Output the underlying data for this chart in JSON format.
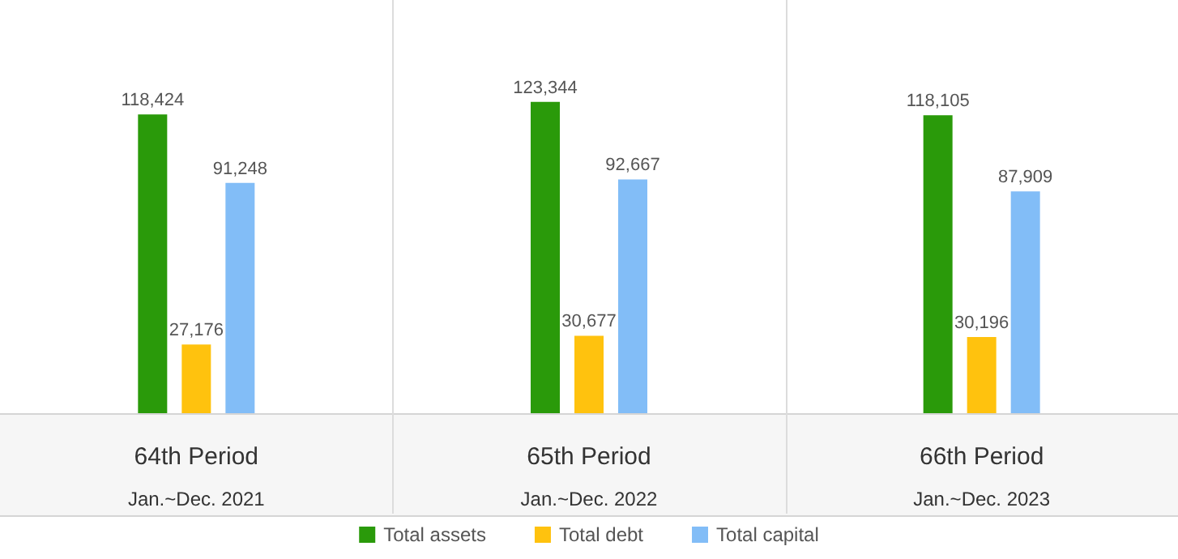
{
  "chart_data": {
    "type": "bar",
    "categories": [
      "64th Period\nJan.~Dec. 2021",
      "65th Period\nJan.~Dec. 2022",
      "66th Period\nJan.~Dec. 2023"
    ],
    "series": [
      {
        "name": "Total assets",
        "color": "#2a9a0a",
        "values": [
          118424,
          123344,
          118105
        ],
        "value_labels": [
          "118,424",
          "123,344",
          "118,105"
        ]
      },
      {
        "name": "Total debt",
        "color": "#ffc20e",
        "values": [
          27176,
          30677,
          30196
        ],
        "value_labels": [
          "27,176",
          "30,677",
          "30,196"
        ]
      },
      {
        "name": "Total capital",
        "color": "#82bdf7",
        "values": [
          91248,
          92667,
          87909
        ],
        "value_labels": [
          "91,248",
          "92,667",
          "87,909"
        ]
      }
    ],
    "legend": "bottom",
    "grid": false
  }
}
